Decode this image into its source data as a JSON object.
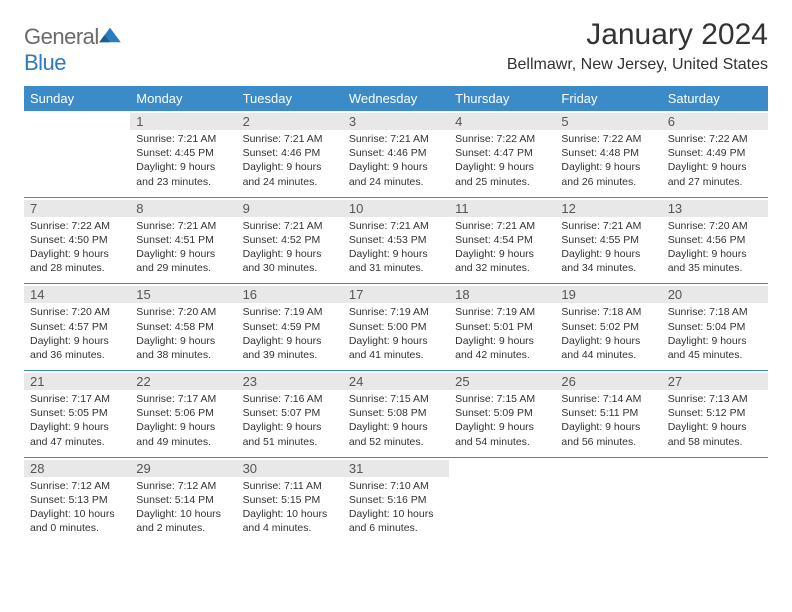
{
  "logo": {
    "word1": "General",
    "word2": "Blue"
  },
  "title": "January 2024",
  "location": "Bellmawr, New Jersey, United States",
  "colors": {
    "header_bg": "#3b8bc9",
    "header_text": "#ffffff",
    "row_border": "#3b8bc9",
    "daynum_bg": "#e8e8e8",
    "text": "#333333",
    "logo_gray": "#6b6b6b",
    "logo_blue": "#2a7bbf",
    "page_bg": "#ffffff"
  },
  "daysOfWeek": [
    "Sunday",
    "Monday",
    "Tuesday",
    "Wednesday",
    "Thursday",
    "Friday",
    "Saturday"
  ],
  "weeks": [
    [
      null,
      {
        "n": "1",
        "sr": "7:21 AM",
        "ss": "4:45 PM",
        "dl": "9 hours and 23 minutes."
      },
      {
        "n": "2",
        "sr": "7:21 AM",
        "ss": "4:46 PM",
        "dl": "9 hours and 24 minutes."
      },
      {
        "n": "3",
        "sr": "7:21 AM",
        "ss": "4:46 PM",
        "dl": "9 hours and 24 minutes."
      },
      {
        "n": "4",
        "sr": "7:22 AM",
        "ss": "4:47 PM",
        "dl": "9 hours and 25 minutes."
      },
      {
        "n": "5",
        "sr": "7:22 AM",
        "ss": "4:48 PM",
        "dl": "9 hours and 26 minutes."
      },
      {
        "n": "6",
        "sr": "7:22 AM",
        "ss": "4:49 PM",
        "dl": "9 hours and 27 minutes."
      }
    ],
    [
      {
        "n": "7",
        "sr": "7:22 AM",
        "ss": "4:50 PM",
        "dl": "9 hours and 28 minutes."
      },
      {
        "n": "8",
        "sr": "7:21 AM",
        "ss": "4:51 PM",
        "dl": "9 hours and 29 minutes."
      },
      {
        "n": "9",
        "sr": "7:21 AM",
        "ss": "4:52 PM",
        "dl": "9 hours and 30 minutes."
      },
      {
        "n": "10",
        "sr": "7:21 AM",
        "ss": "4:53 PM",
        "dl": "9 hours and 31 minutes."
      },
      {
        "n": "11",
        "sr": "7:21 AM",
        "ss": "4:54 PM",
        "dl": "9 hours and 32 minutes."
      },
      {
        "n": "12",
        "sr": "7:21 AM",
        "ss": "4:55 PM",
        "dl": "9 hours and 34 minutes."
      },
      {
        "n": "13",
        "sr": "7:20 AM",
        "ss": "4:56 PM",
        "dl": "9 hours and 35 minutes."
      }
    ],
    [
      {
        "n": "14",
        "sr": "7:20 AM",
        "ss": "4:57 PM",
        "dl": "9 hours and 36 minutes."
      },
      {
        "n": "15",
        "sr": "7:20 AM",
        "ss": "4:58 PM",
        "dl": "9 hours and 38 minutes."
      },
      {
        "n": "16",
        "sr": "7:19 AM",
        "ss": "4:59 PM",
        "dl": "9 hours and 39 minutes."
      },
      {
        "n": "17",
        "sr": "7:19 AM",
        "ss": "5:00 PM",
        "dl": "9 hours and 41 minutes."
      },
      {
        "n": "18",
        "sr": "7:19 AM",
        "ss": "5:01 PM",
        "dl": "9 hours and 42 minutes."
      },
      {
        "n": "19",
        "sr": "7:18 AM",
        "ss": "5:02 PM",
        "dl": "9 hours and 44 minutes."
      },
      {
        "n": "20",
        "sr": "7:18 AM",
        "ss": "5:04 PM",
        "dl": "9 hours and 45 minutes."
      }
    ],
    [
      {
        "n": "21",
        "sr": "7:17 AM",
        "ss": "5:05 PM",
        "dl": "9 hours and 47 minutes."
      },
      {
        "n": "22",
        "sr": "7:17 AM",
        "ss": "5:06 PM",
        "dl": "9 hours and 49 minutes."
      },
      {
        "n": "23",
        "sr": "7:16 AM",
        "ss": "5:07 PM",
        "dl": "9 hours and 51 minutes."
      },
      {
        "n": "24",
        "sr": "7:15 AM",
        "ss": "5:08 PM",
        "dl": "9 hours and 52 minutes."
      },
      {
        "n": "25",
        "sr": "7:15 AM",
        "ss": "5:09 PM",
        "dl": "9 hours and 54 minutes."
      },
      {
        "n": "26",
        "sr": "7:14 AM",
        "ss": "5:11 PM",
        "dl": "9 hours and 56 minutes."
      },
      {
        "n": "27",
        "sr": "7:13 AM",
        "ss": "5:12 PM",
        "dl": "9 hours and 58 minutes."
      }
    ],
    [
      {
        "n": "28",
        "sr": "7:12 AM",
        "ss": "5:13 PM",
        "dl": "10 hours and 0 minutes."
      },
      {
        "n": "29",
        "sr": "7:12 AM",
        "ss": "5:14 PM",
        "dl": "10 hours and 2 minutes."
      },
      {
        "n": "30",
        "sr": "7:11 AM",
        "ss": "5:15 PM",
        "dl": "10 hours and 4 minutes."
      },
      {
        "n": "31",
        "sr": "7:10 AM",
        "ss": "5:16 PM",
        "dl": "10 hours and 6 minutes."
      },
      null,
      null,
      null
    ]
  ],
  "labels": {
    "sunrise": "Sunrise: ",
    "sunset": "Sunset: ",
    "daylight": "Daylight: "
  }
}
